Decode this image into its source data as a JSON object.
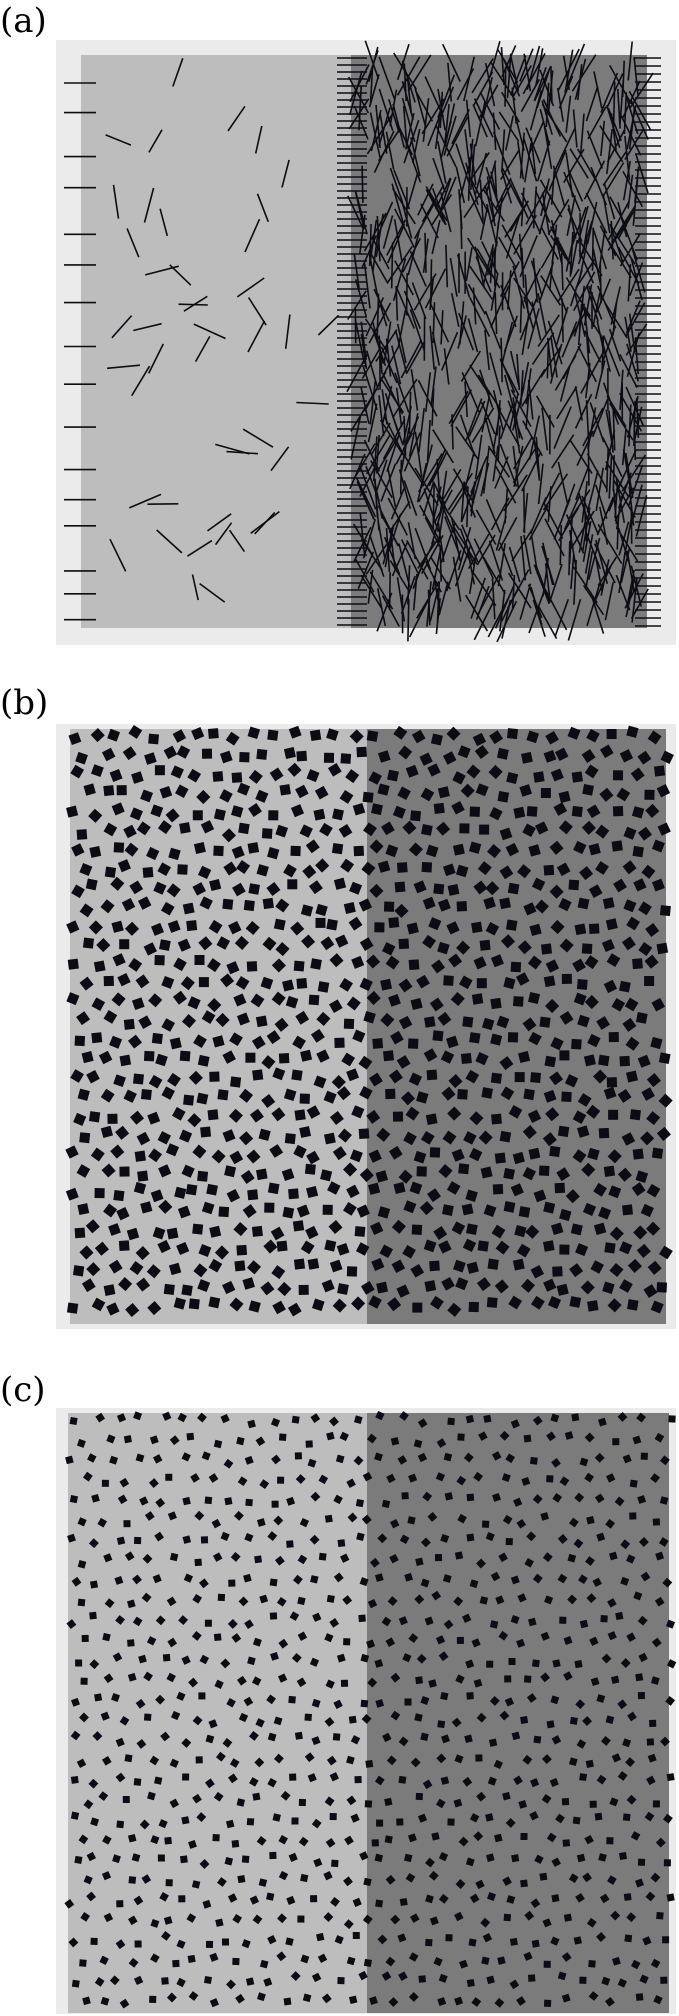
{
  "panels": [
    {
      "label": "(a)",
      "particle_shape": "rod",
      "left_region_density": "low",
      "right_region_density": "high"
    },
    {
      "label": "(b)",
      "particle_shape": "square",
      "left_region_density": "high",
      "right_region_density": "high"
    },
    {
      "label": "(c)",
      "particle_shape": "small-square",
      "left_region_density": "medium",
      "right_region_density": "medium"
    }
  ],
  "colors": {
    "frame": "#ebebeb",
    "left_region": "#bdbdbd",
    "right_region": "#7b7b7b",
    "particle": "#0c0c14"
  }
}
